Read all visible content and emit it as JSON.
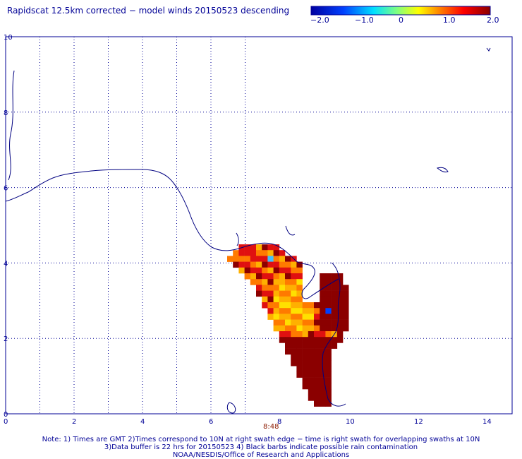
{
  "title": "Rapidscat 12.5km corrected − model winds 20150523 descending",
  "colorbar": {
    "labels": [
      "−2.0",
      "−1.0",
      "0",
      "1.0",
      "2.0"
    ],
    "stops": [
      "#0000a0",
      "#0040ff",
      "#00e0ff",
      "#80ff80",
      "#ffff00",
      "#ff8000",
      "#ff0000",
      "#8b0000"
    ]
  },
  "axes": {
    "x_ticks": [
      "0",
      "2",
      "4",
      "6",
      "8",
      "10",
      "12",
      "14"
    ],
    "y_ticks": [
      "0",
      "2",
      "4",
      "6",
      "8",
      "10"
    ]
  },
  "swath_time": "8:48",
  "notes": [
    "Note: 1) Times are GMT 2)Times correspond to 10N at right swath edge − time is right swath for overlapping swaths at 10N",
    "3)Data buffer is 22 hrs for 20150523 4) Black barbs indicate possible rain contamination",
    "NOAA/NESDIS/Office of Research and Applications"
  ],
  "colors": {
    "coast": "#000080",
    "grid": "#000096",
    "dark_red": "#8b0000",
    "red": "#e01010",
    "orange": "#ff7a00",
    "yellow_orange": "#ffb000",
    "yellow": "#ffe000",
    "blue": "#0040ff",
    "light_blue": "#40c0ff"
  }
}
